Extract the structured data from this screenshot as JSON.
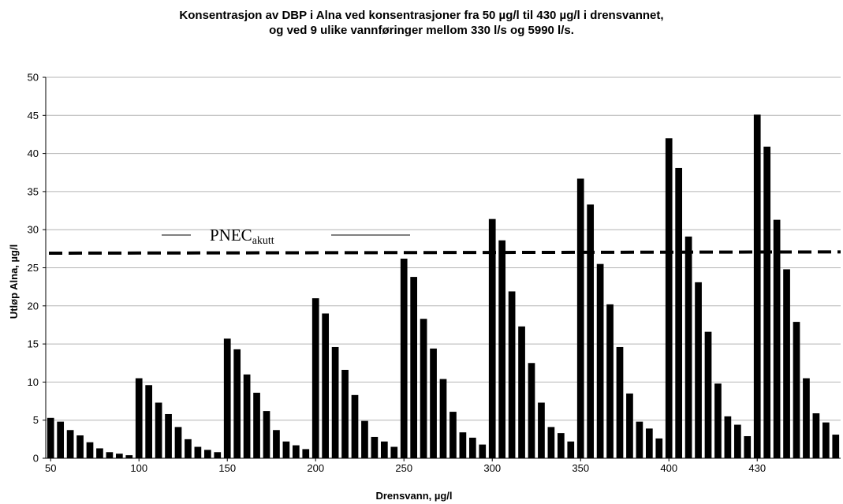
{
  "chart_data": {
    "type": "bar",
    "title_line1": "Konsentrasjon av DBP i Alna  ved  konsentrasjoner fra 50 µg/l  til 430 µg/l i drensvannet,",
    "title_line2": "og ved 9 ulike vannføringer mellom 330 l/s og 5990 l/s.",
    "xlabel": "Drensvann, µg/l",
    "ylabel": "Utløp Alna, µg/l",
    "ylim": [
      0,
      50
    ],
    "yticks": [
      0,
      5,
      10,
      15,
      20,
      25,
      30,
      35,
      40,
      45,
      50
    ],
    "group_labels": [
      "50",
      "100",
      "150",
      "200",
      "250",
      "300",
      "350",
      "400",
      "430"
    ],
    "groups": [
      {
        "drensvann": "50",
        "values": [
          5.3,
          4.8,
          3.7,
          3.0,
          2.1,
          1.3,
          0.8,
          0.6,
          0.4
        ]
      },
      {
        "drensvann": "100",
        "values": [
          10.5,
          9.6,
          7.3,
          5.8,
          4.1,
          2.5,
          1.5,
          1.1,
          0.8
        ]
      },
      {
        "drensvann": "150",
        "values": [
          15.7,
          14.3,
          11.0,
          8.6,
          6.2,
          3.7,
          2.2,
          1.7,
          1.2
        ]
      },
      {
        "drensvann": "200",
        "values": [
          21.0,
          19.0,
          14.6,
          11.6,
          8.3,
          4.9,
          2.8,
          2.2,
          1.5
        ]
      },
      {
        "drensvann": "250",
        "values": [
          26.2,
          23.8,
          18.3,
          14.4,
          10.4,
          6.1,
          3.4,
          2.7,
          1.8
        ]
      },
      {
        "drensvann": "300",
        "values": [
          31.4,
          28.6,
          21.9,
          17.3,
          12.5,
          7.3,
          4.1,
          3.3,
          2.2
        ]
      },
      {
        "drensvann": "350",
        "values": [
          36.7,
          33.3,
          25.5,
          20.2,
          14.6,
          8.5,
          4.8,
          3.9,
          2.6
        ]
      },
      {
        "drensvann": "400",
        "values": [
          42.0,
          38.1,
          29.1,
          23.1,
          16.6,
          9.8,
          5.5,
          4.4,
          2.9
        ]
      },
      {
        "drensvann": "430",
        "values": [
          45.1,
          40.9,
          31.3,
          24.8,
          17.9,
          10.5,
          5.9,
          4.7,
          3.1
        ]
      }
    ],
    "reference_line": {
      "label": "PNEC",
      "label_sub": "akutt",
      "value": 27.0,
      "style": "dashed"
    },
    "grid": true,
    "bar_color": "#000000"
  }
}
